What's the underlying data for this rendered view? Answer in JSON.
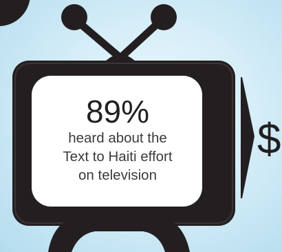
{
  "infographic": {
    "stat_value": "89%",
    "stat_lines": [
      "heard about the",
      "Text to Haiti effort",
      "on television"
    ],
    "next_panel_glyph": "$"
  },
  "colors": {
    "background_center": "#eef8fd",
    "background_edge": "#b4dcee",
    "tv_body": "#231f20",
    "tv_screen": "#ffffff",
    "text": "#231f20"
  },
  "icons": {
    "television": "tv-icon",
    "antenna": "antenna-icon",
    "arrow": "arrow-right-icon"
  }
}
